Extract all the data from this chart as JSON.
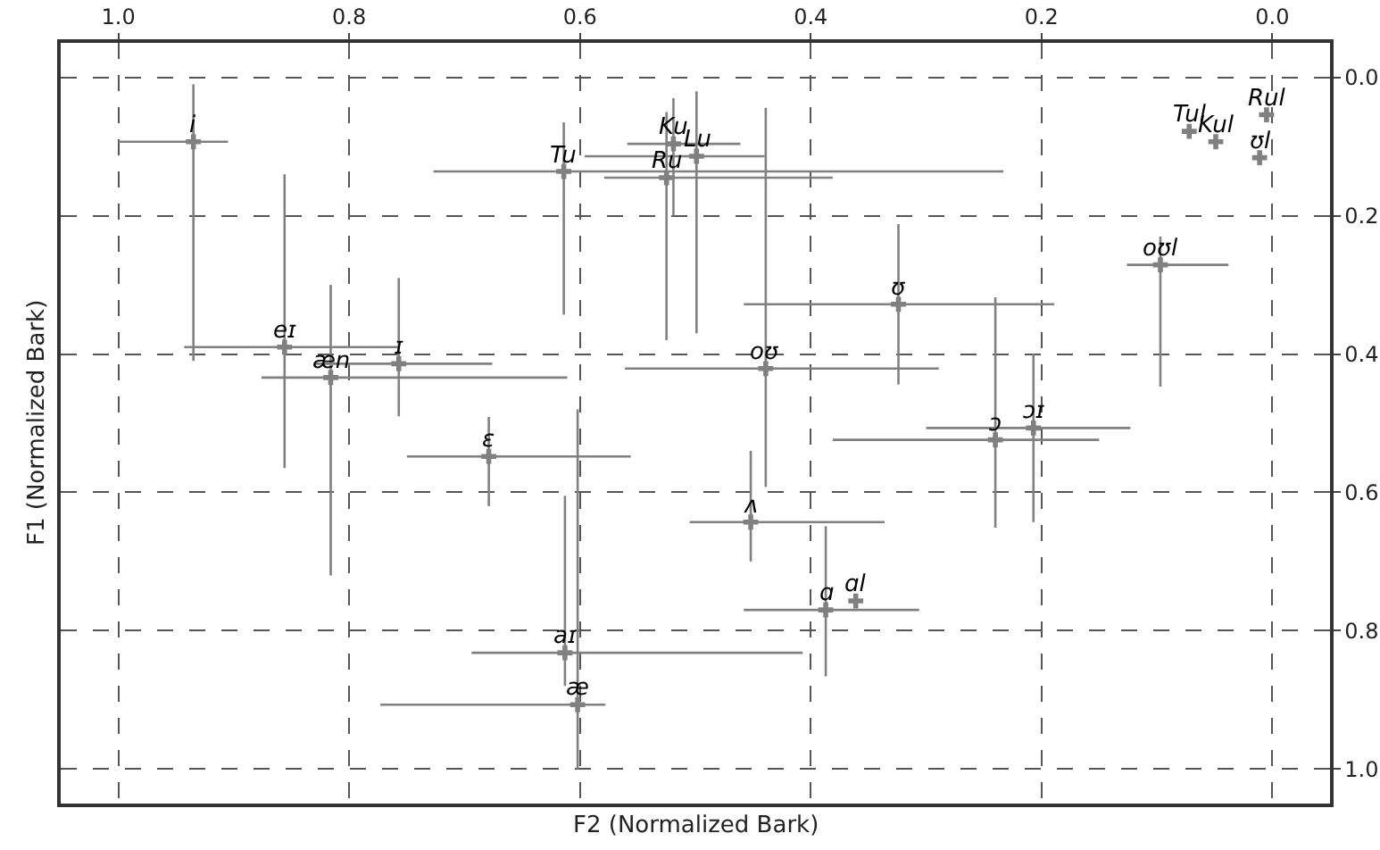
{
  "chart_data": {
    "type": "scatter",
    "xlabel": "F2 (Normalized Bark)",
    "ylabel": "F1 (Normalized Bark)",
    "x": [
      0.935,
      0.856,
      0.816,
      0.757,
      0.679,
      0.613,
      0.602,
      0.614,
      0.519,
      0.499,
      0.525,
      0.439,
      0.324,
      0.452,
      0.387,
      0.361,
      0.24,
      0.207,
      0.097,
      0.072,
      0.049,
      0.005,
      0.011
    ],
    "series": [
      {
        "color": "#808080",
        "values": [
          0.093,
          0.39,
          0.434,
          0.414,
          0.548,
          0.832,
          0.907,
          0.136,
          0.096,
          0.114,
          0.145,
          0.421,
          0.328,
          0.643,
          0.77,
          0.757,
          0.524,
          0.507,
          0.271,
          0.078,
          0.093,
          0.054,
          0.116
        ],
        "xerrors": [
          [
            0.905,
            1.0
          ],
          [
            0.757,
            0.943
          ],
          [
            0.611,
            0.876
          ],
          [
            0.676,
            0.83
          ],
          [
            0.556,
            0.75
          ],
          [
            0.407,
            0.694
          ],
          [
            0.578,
            0.773
          ],
          [
            0.233,
            0.727
          ],
          [
            0.461,
            0.559
          ],
          [
            0.44,
            0.596
          ],
          [
            0.381,
            0.579
          ],
          [
            0.289,
            0.561
          ],
          [
            0.189,
            0.458
          ],
          [
            0.336,
            0.505
          ],
          [
            0.306,
            0.458
          ],
          null,
          [
            0.15,
            0.381
          ],
          [
            0.123,
            0.3
          ],
          [
            0.038,
            0.126
          ],
          null,
          null,
          null,
          null
        ],
        "errors": [
          [
            0.01,
            0.41
          ],
          [
            0.14,
            0.565
          ],
          [
            0.3,
            0.72
          ],
          [
            0.29,
            0.49
          ],
          [
            0.491,
            0.62
          ],
          [
            0.605,
            0.88
          ],
          [
            0.48,
            1.0
          ],
          [
            0.065,
            0.343
          ],
          [
            0.03,
            0.2
          ],
          [
            0.02,
            0.37
          ],
          [
            0.05,
            0.38
          ],
          [
            0.044,
            0.592
          ],
          [
            0.212,
            0.444
          ],
          [
            0.54,
            0.7
          ],
          [
            0.649,
            0.866
          ],
          null,
          [
            0.318,
            0.651
          ],
          [
            0.4,
            0.643
          ],
          [
            0.23,
            0.447
          ],
          null,
          null,
          null,
          null
        ]
      }
    ],
    "annotations": [
      {
        "text": "i",
        "x": 0.935,
        "y": 0.093
      },
      {
        "text": "eɪ",
        "x": 0.856,
        "y": 0.39
      },
      {
        "text": "æn",
        "x": 0.816,
        "y": 0.434
      },
      {
        "text": "ɪ",
        "x": 0.757,
        "y": 0.414
      },
      {
        "text": "ɛ",
        "x": 0.679,
        "y": 0.548
      },
      {
        "text": "aɪ",
        "x": 0.613,
        "y": 0.832
      },
      {
        "text": "æ",
        "x": 0.602,
        "y": 0.907
      },
      {
        "text": "Tu",
        "x": 0.614,
        "y": 0.136
      },
      {
        "text": "Ku",
        "x": 0.519,
        "y": 0.096
      },
      {
        "text": "Lu",
        "x": 0.499,
        "y": 0.114
      },
      {
        "text": "Ru",
        "x": 0.525,
        "y": 0.145
      },
      {
        "text": "oʊ",
        "x": 0.439,
        "y": 0.421
      },
      {
        "text": "ʊ",
        "x": 0.324,
        "y": 0.328
      },
      {
        "text": "ʌ",
        "x": 0.452,
        "y": 0.643
      },
      {
        "text": "ɑ",
        "x": 0.387,
        "y": 0.77
      },
      {
        "text": "ɑl",
        "x": 0.361,
        "y": 0.757
      },
      {
        "text": "ɔ",
        "x": 0.24,
        "y": 0.524
      },
      {
        "text": "ɔɪ",
        "x": 0.207,
        "y": 0.507
      },
      {
        "text": "oʊl",
        "x": 0.097,
        "y": 0.271
      },
      {
        "text": "Tul",
        "x": 0.072,
        "y": 0.078
      },
      {
        "text": "Kul",
        "x": 0.049,
        "y": 0.093
      },
      {
        "text": "Rul",
        "x": 0.005,
        "y": 0.054
      },
      {
        "text": "ʊl",
        "x": 0.011,
        "y": 0.116
      }
    ],
    "xlim": [
      1.05,
      -0.05
    ],
    "ylim": [
      1.05,
      -0.05
    ],
    "xticks": [
      {
        "value": 1,
        "label": "1.0"
      },
      0.8,
      0.6,
      0.4,
      0.2,
      {
        "value": 0,
        "label": "0.0"
      }
    ],
    "yticks": [
      {
        "value": 0,
        "label": "0.0"
      },
      0.2,
      0.4,
      0.6,
      0.8,
      {
        "value": 1,
        "label": "1.0"
      }
    ],
    "grid": true,
    "marker": "cross"
  }
}
